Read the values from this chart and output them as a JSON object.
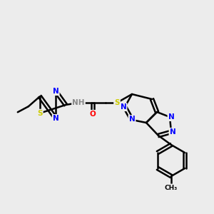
{
  "background_color": "#ececec",
  "atom_colors": {
    "N": "#0000ff",
    "S": "#cccc00",
    "O": "#ff0000",
    "C": "#000000",
    "H": "#888888"
  },
  "bond_color": "#000000",
  "bond_width": 1.8
}
